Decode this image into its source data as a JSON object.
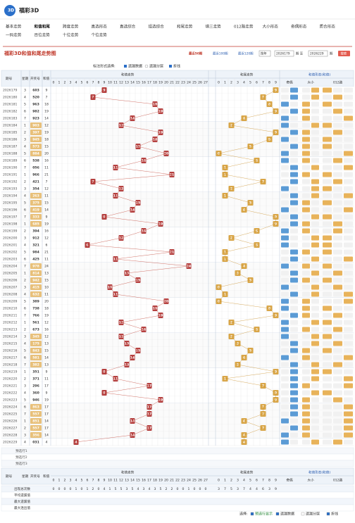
{
  "header": {
    "logo": "福彩3D"
  },
  "nav": [
    [
      "基本走势",
      "和值和尾",
      "跨度走势",
      "直选形态",
      "直选综合",
      "组选综合",
      "和尾走势",
      "填三走势",
      "012路走势",
      "大小形态",
      "奇偶形态",
      "质合形态"
    ],
    [
      "一码走势",
      "百位走势",
      "十位走势",
      "个位走势"
    ]
  ],
  "title": "福彩3D和值和尾走势图",
  "controls": {
    "recent": [
      "最近50期",
      "最近100期",
      "最近120期"
    ],
    "select": "按年",
    "from": "2026179",
    "mid": "期 至",
    "to": "2026229",
    "end": "期",
    "search": "搜索"
  },
  "options": {
    "label": "标注形式选择:",
    "items": [
      "遗漏数据",
      "遗漏分层",
      "折线"
    ]
  },
  "table": {
    "headers": {
      "period": "期号",
      "week": "星期",
      "number": "开奖号",
      "sum": "和值",
      "sum_trend": "和值走势",
      "tail_trend": "和尾走势",
      "form": "和值形态(和值)"
    },
    "sum_cols": [
      0,
      1,
      2,
      3,
      4,
      5,
      6,
      7,
      8,
      9,
      10,
      11,
      12,
      13,
      14,
      15,
      16,
      17,
      18,
      19,
      20,
      21,
      22,
      23,
      24,
      25,
      26,
      27
    ],
    "tail_cols": [
      0,
      1,
      2,
      3,
      4,
      5,
      6,
      7,
      8,
      9
    ],
    "form_cols": [
      "奇偶",
      "大小",
      "012路"
    ],
    "rows": [
      [
        "2026179",
        3,
        "603",
        9
      ],
      [
        "2026180",
        4,
        "520",
        7
      ],
      [
        "2026181",
        5,
        "963",
        18
      ],
      [
        "2026182",
        6,
        "982",
        19
      ],
      [
        "2026183",
        7,
        "923",
        14
      ],
      [
        "2026184",
        1,
        "903",
        12
      ],
      [
        "2026185",
        2,
        "397",
        19
      ],
      [
        "2026186",
        3,
        "945",
        18
      ],
      [
        "2026187",
        4,
        "573",
        15
      ],
      [
        "2026188",
        5,
        "884",
        20
      ],
      [
        "2026189",
        6,
        "538",
        16
      ],
      [
        "2026190",
        7,
        "056",
        11
      ],
      [
        "2026191",
        1,
        "966",
        21
      ],
      [
        "2026192",
        2,
        "421",
        7
      ],
      [
        "2026193",
        3,
        "354",
        12
      ],
      [
        "2026194",
        4,
        "263",
        11
      ],
      [
        "2026195",
        5,
        "375",
        15
      ],
      [
        "2026196",
        6,
        "419",
        14
      ],
      [
        "2026197",
        7,
        "333",
        9
      ],
      [
        "2026198",
        1,
        "685",
        19
      ],
      [
        "2026199",
        2,
        "394",
        16
      ],
      [
        "2026200",
        3,
        "912",
        12
      ],
      [
        "2026201",
        4,
        "321",
        6
      ],
      [
        "2026202",
        5,
        "984",
        21
      ],
      [
        "2026203",
        6,
        "425",
        11
      ],
      [
        "2026204",
        7,
        "978",
        24
      ],
      [
        "2026205",
        1,
        "814",
        13
      ],
      [
        "2026206",
        2,
        "942",
        15
      ],
      [
        "2026207",
        3,
        "415",
        10
      ],
      [
        "2026208",
        4,
        "632",
        11
      ],
      [
        "2026209",
        5,
        "389",
        20
      ],
      [
        "2026210",
        6,
        "738",
        18
      ],
      [
        "2026211",
        7,
        "766",
        19
      ],
      [
        "2026212",
        1,
        "561",
        12
      ],
      [
        "2026213",
        2,
        "673",
        16
      ],
      [
        "2026214",
        3,
        "345",
        12
      ],
      [
        "2026215",
        4,
        "175",
        13
      ],
      [
        "2026216",
        5,
        "843",
        15
      ],
      [
        "2026217",
        6,
        "581",
        14
      ],
      [
        "2026218",
        7,
        "382",
        13
      ],
      [
        "2026219",
        1,
        "351",
        9
      ],
      [
        "2026220",
        2,
        "371",
        11
      ],
      [
        "2026221",
        3,
        "296",
        17
      ],
      [
        "2026222",
        4,
        "360",
        9
      ],
      [
        "2026223",
        5,
        "946",
        19
      ],
      [
        "2026224",
        6,
        "863",
        17
      ],
      [
        "2026225",
        7,
        "557",
        17
      ],
      [
        "2026226",
        1,
        "851",
        14
      ],
      [
        "2026227",
        2,
        "557",
        17
      ],
      [
        "2026228",
        3,
        "356",
        14
      ],
      [
        "2026229",
        4,
        "031",
        4
      ]
    ],
    "forecast": [
      "预选行1",
      "预选行2",
      "预选行3"
    ],
    "stats": {
      "labels": [
        "出现总次数",
        "平均遗漏值",
        "最大遗漏值",
        "最大连出值"
      ],
      "sum_counts": [
        0,
        0,
        0,
        0,
        1,
        0,
        1,
        2,
        0,
        4,
        1,
        5,
        5,
        3,
        5,
        4,
        3,
        4,
        3,
        5,
        2,
        2,
        0,
        0,
        1,
        0,
        0,
        0
      ],
      "tail_counts": [
        3,
        7,
        5,
        3,
        7,
        4,
        4,
        6,
        3,
        9
      ]
    }
  },
  "footer": {
    "label": "选择:",
    "items": [
      "预选行显示",
      "遗漏数据",
      "遗漏分层",
      "折线"
    ]
  }
}
